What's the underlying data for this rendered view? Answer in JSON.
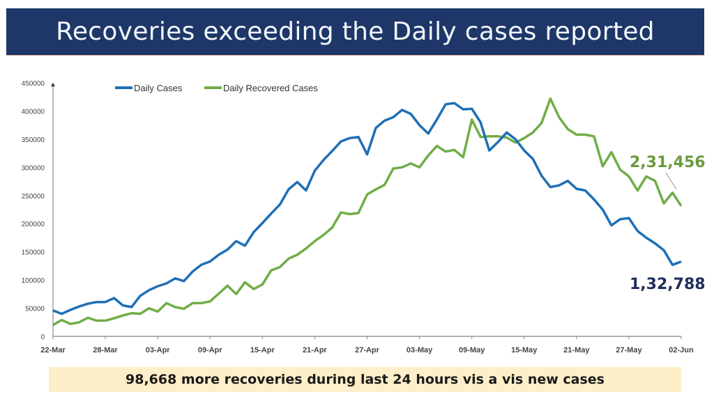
{
  "title": "Recoveries exceeding the Daily cases reported",
  "note": "98,668 more recoveries during last 24 hours vis a vis new cases",
  "chart_data": {
    "type": "line",
    "title": "",
    "xlabel": "",
    "ylabel": "",
    "ylim": [
      0,
      450000
    ],
    "yticks": [
      0,
      50000,
      100000,
      150000,
      200000,
      250000,
      300000,
      350000,
      400000,
      450000
    ],
    "x_start": "22-Mar",
    "x_end": "02-Jun",
    "xtick_labels": [
      "22-Mar",
      "28-Mar",
      "03-Apr",
      "09-Apr",
      "15-Apr",
      "21-Apr",
      "27-Apr",
      "03-May",
      "09-May",
      "15-May",
      "21-May",
      "27-May",
      "02-Jun"
    ],
    "grid": false,
    "legend": "top-left",
    "series": [
      {
        "name": "Daily Cases",
        "color": "#1f6fb5",
        "values": [
          46000,
          40000,
          47000,
          53000,
          58000,
          61000,
          61000,
          68000,
          55000,
          52000,
          72000,
          82000,
          89000,
          94000,
          103000,
          98000,
          115000,
          127000,
          133000,
          145000,
          154000,
          169000,
          161000,
          185000,
          201000,
          218000,
          234000,
          261000,
          274000,
          259000,
          294000,
          313000,
          329000,
          346000,
          352000,
          354000,
          323000,
          370000,
          383000,
          389000,
          402000,
          395000,
          375000,
          360000,
          385000,
          412000,
          414000,
          403000,
          404000,
          380000,
          330000,
          345000,
          362000,
          350000,
          330000,
          315000,
          285000,
          265000,
          268000,
          276000,
          262000,
          259000,
          243000,
          225000,
          197000,
          208000,
          210000,
          187000,
          175000,
          165000,
          153000,
          127000,
          132788
        ]
      },
      {
        "name": "Daily Recovered Cases",
        "color": "#70ad47",
        "values": [
          20000,
          29000,
          22000,
          25000,
          33000,
          28000,
          28000,
          32000,
          37000,
          41000,
          40000,
          50000,
          44000,
          59000,
          52000,
          49000,
          59000,
          59000,
          62000,
          76000,
          90000,
          75000,
          96000,
          84000,
          92000,
          117000,
          123000,
          138000,
          145000,
          156000,
          169000,
          180000,
          193000,
          220000,
          217000,
          219000,
          252000,
          261000,
          269000,
          298000,
          300000,
          307000,
          300000,
          321000,
          338000,
          328000,
          331000,
          318000,
          385000,
          354000,
          355000,
          355000,
          353000,
          344000,
          352000,
          362000,
          379000,
          422000,
          389000,
          368000,
          358000,
          358000,
          355000,
          302000,
          327000,
          296000,
          284000,
          259000,
          284000,
          276000,
          236000,
          255000,
          231456
        ]
      }
    ],
    "annotations": [
      {
        "text": "2,31,456",
        "series": "Daily Recovered Cases",
        "color": "#6a9a3c"
      },
      {
        "text": "1,32,788",
        "series": "Daily Cases",
        "color": "#1f2d5c"
      }
    ]
  }
}
